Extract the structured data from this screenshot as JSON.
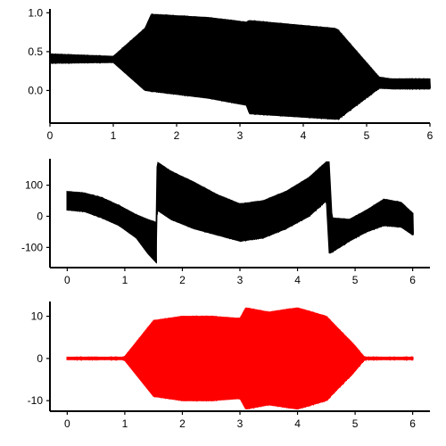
{
  "chart_data": [
    {
      "type": "area",
      "xlim": [
        0,
        6
      ],
      "ylim": [
        -0.42,
        1.05
      ],
      "xticks": [
        "0",
        "1",
        "2",
        "3",
        "4",
        "5",
        "6"
      ],
      "yticks": [
        "0.0",
        "0.5",
        "1.0"
      ],
      "series": [
        {
          "color": "#000000",
          "x": [
            0,
            1.0,
            1.5,
            1.6,
            2.5,
            3.1,
            3.15,
            4.5,
            4.55,
            5.2,
            5.4,
            6.0
          ],
          "upper": [
            0.47,
            0.44,
            0.8,
            0.98,
            0.94,
            0.88,
            0.9,
            0.8,
            0.78,
            0.17,
            0.15,
            0.15
          ],
          "lower": [
            0.35,
            0.36,
            0.0,
            -0.01,
            -0.1,
            -0.19,
            -0.3,
            -0.37,
            -0.37,
            0.03,
            0.02,
            0.02
          ]
        }
      ]
    },
    {
      "type": "area",
      "xlim": [
        -0.3,
        6.3
      ],
      "ylim": [
        -165,
        185
      ],
      "xticks": [
        "0",
        "1",
        "2",
        "3",
        "4",
        "5",
        "6"
      ],
      "yticks": [
        "-100",
        "0",
        "100"
      ],
      "series": [
        {
          "color": "#000000",
          "x": [
            0,
            0.3,
            0.6,
            0.9,
            1.2,
            1.4,
            1.55,
            1.56,
            1.8,
            2.2,
            2.6,
            3.0,
            3.4,
            3.8,
            4.2,
            4.5,
            4.55,
            4.6,
            4.9,
            5.2,
            5.5,
            5.8,
            6.0
          ],
          "upper": [
            80,
            75,
            60,
            35,
            5,
            -10,
            -20,
            175,
            145,
            110,
            70,
            40,
            50,
            80,
            125,
            175,
            175,
            -5,
            -10,
            20,
            55,
            45,
            10
          ],
          "lower": [
            20,
            15,
            -5,
            -30,
            -70,
            -120,
            -150,
            20,
            -10,
            -40,
            -60,
            -80,
            -70,
            -40,
            0,
            50,
            -120,
            -115,
            -80,
            -50,
            -30,
            -35,
            -60
          ]
        }
      ]
    },
    {
      "type": "area",
      "xlim": [
        -0.3,
        6.3
      ],
      "ylim": [
        -12.5,
        13.5
      ],
      "xticks": [
        "0",
        "1",
        "2",
        "3",
        "4",
        "5",
        "6"
      ],
      "yticks": [
        "-10",
        "0",
        "10"
      ],
      "series": [
        {
          "color": "#ff0000",
          "x": [
            0,
            0.95,
            1.0,
            1.5,
            2.0,
            2.5,
            3.0,
            3.1,
            3.5,
            4.0,
            4.5,
            5.0,
            5.15,
            5.2,
            6.0
          ],
          "upper": [
            0.3,
            0.3,
            0.5,
            9.0,
            10.0,
            10.0,
            9.5,
            12.0,
            11.0,
            12.0,
            10.0,
            3.0,
            0.5,
            0.3,
            0.3
          ],
          "lower": [
            -0.3,
            -0.3,
            -0.5,
            -9.0,
            -10.0,
            -10.0,
            -9.5,
            -12.0,
            -11.0,
            -12.0,
            -10.0,
            -3.0,
            -0.5,
            -0.3,
            -0.3
          ]
        }
      ]
    }
  ]
}
